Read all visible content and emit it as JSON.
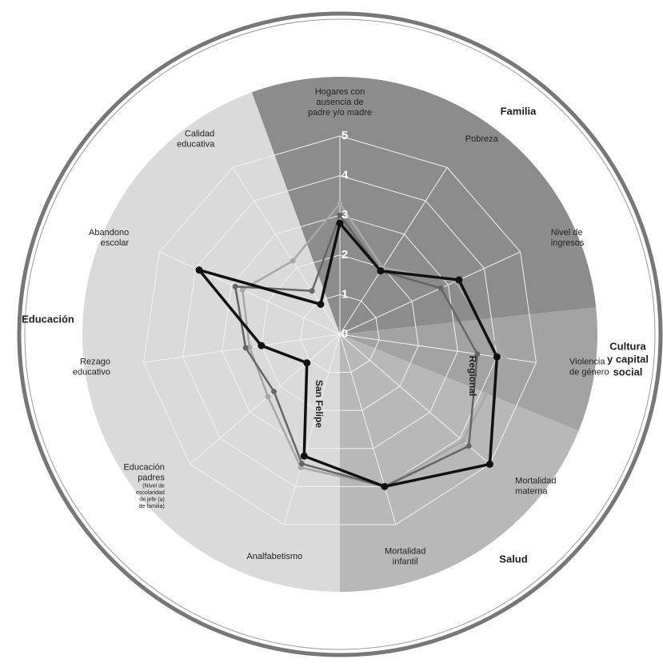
{
  "chart_data": {
    "type": "radar",
    "axes": [
      {
        "label": [
          "Hogares con",
          "ausencia de",
          "padre y/o madre"
        ]
      },
      {
        "label": [
          "Pobreza"
        ]
      },
      {
        "label": [
          "Nivel de",
          "ingresos"
        ]
      },
      {
        "label": [
          "Violencia",
          "de género"
        ]
      },
      {
        "label": [
          "Mortalidad",
          "materna"
        ]
      },
      {
        "label": [
          "Mortalidad",
          "infantil"
        ]
      },
      {
        "label": [
          "Analfabetismo"
        ]
      },
      {
        "label": [
          "Educación",
          "padres"
        ],
        "note": [
          "(Nivel de",
          "escolaridad",
          "de jefe (a)",
          "de familia)"
        ]
      },
      {
        "label": [
          "Rezago",
          "educativo"
        ]
      },
      {
        "label": [
          "Abandono",
          "escolar"
        ]
      },
      {
        "label": [
          "Calidad",
          "educativa"
        ]
      }
    ],
    "rlim": [
      0,
      5
    ],
    "rticks": [
      0,
      1,
      2,
      3,
      4,
      5
    ],
    "sectors": [
      {
        "label": [
          "Familia"
        ],
        "color": "#8c8c8c"
      },
      {
        "label": [
          "Cultura",
          "y capital",
          "social"
        ],
        "color": "#a3a3a3"
      },
      {
        "label": [
          "Salud"
        ],
        "color": "#b8b8b8"
      },
      {
        "label": [
          "Educación"
        ],
        "color": "#dadada"
      }
    ],
    "series": [
      {
        "color": "#a8a8a8",
        "values": [
          3.3,
          2.0,
          3.2,
          4.2,
          4.1,
          4.0,
          3.5,
          2.4,
          2.3,
          2.7,
          2.2
        ]
      },
      {
        "name": "Regional",
        "color": "#666666",
        "values": [
          3.0,
          1.9,
          2.8,
          3.5,
          4.3,
          4.0,
          3.4,
          2.2,
          2.4,
          2.9,
          1.3
        ]
      },
      {
        "name": "San Felipe",
        "color": "#111111",
        "values": [
          2.8,
          1.9,
          3.3,
          4.0,
          5.0,
          4.0,
          3.2,
          1.1,
          2.0,
          3.9,
          0.9
        ]
      }
    ]
  }
}
